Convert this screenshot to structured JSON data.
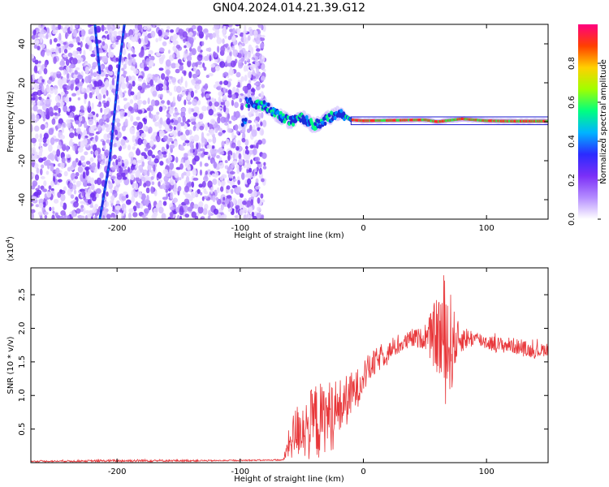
{
  "title": "GN04.2024.014.21.39.G12",
  "chart_data": [
    {
      "type": "heatmap",
      "title": "GN04.2024.014.21.39.G12",
      "xlabel": "Height of straight line (km)",
      "ylabel": "Frequency (Hz)",
      "xlim": [
        -270,
        150
      ],
      "ylim": [
        -50,
        50
      ],
      "xticks": [
        -200,
        -100,
        0,
        100
      ],
      "yticks": [
        -40,
        -20,
        0,
        20,
        40
      ],
      "description_series": [
        {
          "name": "noise region",
          "x_range": [
            -270,
            -80
          ],
          "y_range": [
            -50,
            50
          ]
        },
        {
          "name": "streak A",
          "points": [
            [
              -214,
              -50
            ],
            [
              -206,
              -20
            ],
            [
              -198,
              30
            ],
            [
              -194,
              50
            ]
          ]
        },
        {
          "name": "streak B",
          "points": [
            [
              -218,
              50
            ],
            [
              -214,
              25
            ]
          ]
        },
        {
          "name": "signal track",
          "points": [
            [
              -95,
              10
            ],
            [
              -80,
              8
            ],
            [
              -70,
              4
            ],
            [
              -60,
              0
            ],
            [
              -50,
              2
            ],
            [
              -40,
              -2
            ],
            [
              -30,
              1
            ],
            [
              -20,
              5
            ],
            [
              -10,
              1
            ],
            [
              0,
              0.5
            ],
            [
              50,
              1
            ],
            [
              60,
              0
            ],
            [
              80,
              1.5
            ],
            [
              100,
              0.5
            ],
            [
              120,
              0.3
            ],
            [
              150,
              0.3
            ]
          ]
        }
      ],
      "colorbar": {
        "label": "Normalized spectral amplitude",
        "range": [
          0,
          1
        ],
        "ticks": [
          "0.0",
          "0.2",
          "0.4",
          "0.6",
          "0.8"
        ],
        "colors": [
          "#ffffff",
          "#b48cff",
          "#7b2ff7",
          "#2b2bff",
          "#00b4ff",
          "#00ff80",
          "#a0ff00",
          "#ffd000",
          "#ff4000",
          "#ff007f"
        ]
      }
    },
    {
      "type": "line",
      "xlabel": "Height of straight line (km)",
      "ylabel": "SNR (10 * v/v)",
      "multiplier_label": "(x10",
      "multiplier_exp": "4",
      "multiplier_close": ")",
      "xlim": [
        -270,
        150
      ],
      "ylim": [
        0,
        2.9
      ],
      "xticks": [
        -200,
        -100,
        0,
        100
      ],
      "yticks": [
        "0.5",
        "1.0",
        "1.5",
        "2.0",
        "2.5"
      ],
      "color": "#e8373a",
      "envelope": {
        "x": [
          -270,
          -180,
          -120,
          -65,
          -60,
          -55,
          -50,
          -45,
          -40,
          -35,
          -30,
          -25,
          -20,
          -15,
          -10,
          -5,
          0,
          10,
          20,
          30,
          40,
          50,
          60,
          65,
          70,
          75,
          80,
          90,
          100,
          110,
          120,
          130,
          140,
          150
        ],
        "y": [
          0.02,
          0.03,
          0.03,
          0.04,
          0.3,
          0.45,
          0.55,
          0.5,
          0.65,
          0.6,
          0.7,
          0.72,
          0.8,
          0.9,
          1.0,
          1.1,
          1.3,
          1.5,
          1.65,
          1.75,
          1.85,
          1.85,
          1.9,
          1.85,
          1.75,
          1.8,
          1.85,
          1.85,
          1.8,
          1.75,
          1.75,
          1.7,
          1.65,
          1.7
        ],
        "amp": [
          0.01,
          0.02,
          0.01,
          0.01,
          0.25,
          0.4,
          0.45,
          0.5,
          0.55,
          0.6,
          0.5,
          0.55,
          0.45,
          0.4,
          0.35,
          0.3,
          0.25,
          0.2,
          0.15,
          0.12,
          0.15,
          0.15,
          0.6,
          1.0,
          0.9,
          0.35,
          0.2,
          0.12,
          0.12,
          0.12,
          0.12,
          0.12,
          0.1,
          0.1
        ]
      }
    }
  ]
}
